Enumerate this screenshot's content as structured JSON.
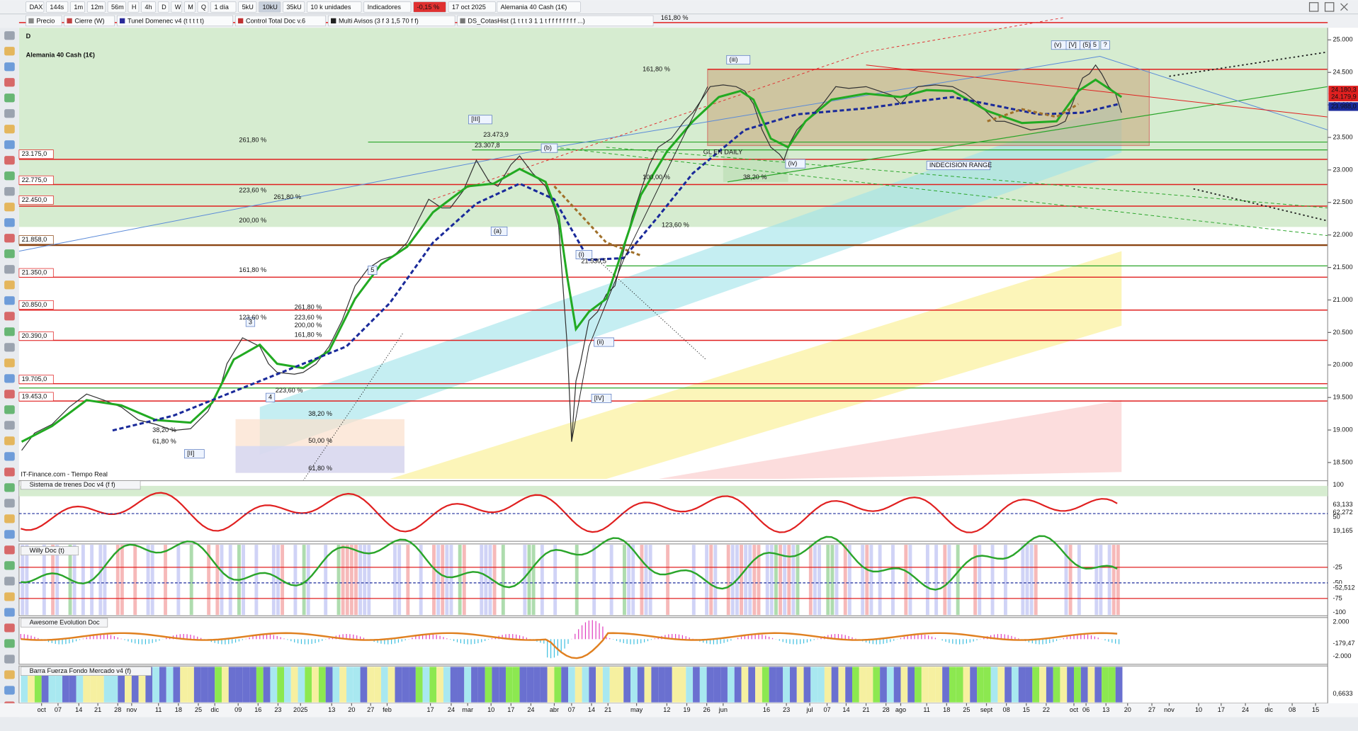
{
  "toolbar": {
    "row1": [
      "DAX",
      "144s",
      "1m",
      "12m",
      "56m",
      "H",
      "4h",
      "D",
      "W",
      "M",
      "Q",
      "1 día",
      "5kU",
      "10kU",
      "35kU",
      "10 k unidades",
      "Indicadores",
      "-0,15 %",
      "17 oct 2025",
      "Alemania 40 Cash (1€)"
    ],
    "row2": [
      "Precio",
      "Cierre (W)",
      "Tunel Domenec v4 (t t t t t)",
      "Control Total Doc v.6",
      "Multi Avisos (3 f 3 1,5 70 f f)",
      "DS_CotasHist (1 t t t 3 1 1 t f f f f f f f f ...)"
    ]
  },
  "chart": {
    "period": "D",
    "title": "Alemania 40 Cash (1€)",
    "source": "IT-Finance.com - Tiempo Real",
    "price_axis": [
      "25.000",
      "24.500",
      "24.000",
      "23.500",
      "23.000",
      "22.500",
      "22.000",
      "21.500",
      "21.000",
      "20.500",
      "20.000",
      "19.500",
      "19.000",
      "18.500"
    ],
    "price_labels": [
      "24.180,3",
      "24.179,9",
      "23.988,0"
    ],
    "levels": [
      "23.175,0",
      "22.775,0",
      "22.450,0",
      "21.858,0",
      "21.350,0",
      "20.850,0",
      "20.390,0",
      "19.705,0",
      "19.453,0"
    ],
    "annotations": [
      "161,80 %",
      "161,80 %",
      "(iii)",
      "[III]",
      "23.473,9",
      "23.307,8",
      "(b)",
      "261,80 %",
      "261,80 %",
      "223,60 %",
      "200,00 %",
      "(a)",
      "100,00 %",
      "123,60 %",
      "GL EN DAILY",
      "38,20 %",
      "INDECISION RANGE",
      "(iv)",
      "(v)",
      "[V]",
      "(5)",
      "5",
      "?",
      "(i)",
      "21.530,5",
      "161,80 %",
      "5",
      "3",
      "123,60 %",
      "261,80 %",
      "223,60 %",
      "200,00 %",
      "161,80 %",
      "223,60 %",
      "4",
      "(ii)",
      "[IV]",
      "38,20 %",
      "50,00 %",
      "61,80 %",
      "61,80 %",
      "[II]",
      "38,20 %"
    ]
  },
  "panels": [
    {
      "title": "Sistema de trenes Doc v4 (f f)",
      "axis": [
        "100",
        "63,133",
        "62,272",
        "50",
        "19,165"
      ]
    },
    {
      "title": "Willy Doc (t)",
      "axis": [
        "-25",
        "-50",
        "-52,512",
        "-75",
        "-100"
      ]
    },
    {
      "title": "Awesome Evolution Doc",
      "axis": [
        "2.000",
        "-179,47",
        "-2.000"
      ]
    },
    {
      "title": "Barra Fuerza Fondo Mercado v4 (f)",
      "axis": [
        "0,6633"
      ]
    }
  ],
  "date_axis": [
    "oct",
    "07",
    "14",
    "21",
    "28",
    "nov",
    "11",
    "18",
    "25",
    "dic",
    "09",
    "16",
    "23",
    "2025",
    "13",
    "20",
    "27",
    "feb",
    "17",
    "24",
    "mar",
    "10",
    "17",
    "24",
    "abr",
    "07",
    "14",
    "21",
    "may",
    "12",
    "19",
    "26",
    "jun",
    "16",
    "23",
    "jul",
    "07",
    "14",
    "21",
    "28",
    "ago",
    "11",
    "18",
    "25",
    "sept",
    "08",
    "15",
    "22",
    "oct",
    "06",
    "13",
    "20",
    "27",
    "nov",
    "10",
    "17",
    "24",
    "dic",
    "08",
    "15"
  ]
}
